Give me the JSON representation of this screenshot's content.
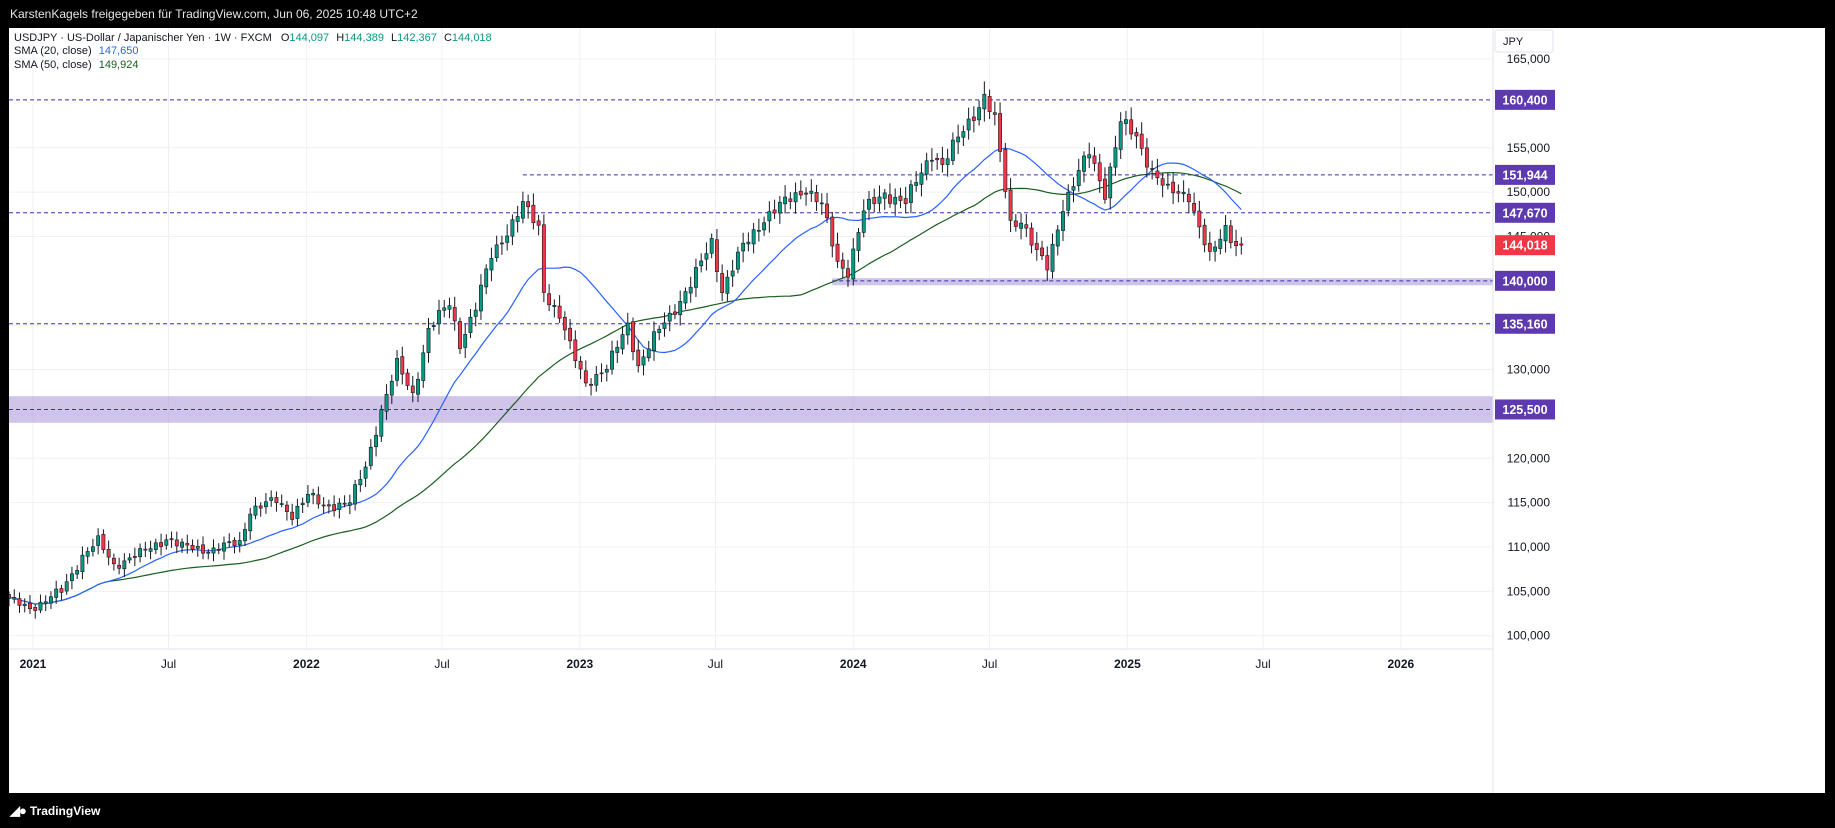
{
  "header": {
    "attribution": "KarstenKagels freigegeben für TradingView.com, Jun 06, 2025 10:48 UTC+2"
  },
  "legend": {
    "title": "USDJPY · US-Dollar / Japanischer Yen · 1W · FXCM",
    "ohlc": {
      "o_label": "O",
      "o": "144,097",
      "h_label": "H",
      "h": "144,389",
      "l_label": "L",
      "l": "142,367",
      "c_label": "C",
      "c": "144,018"
    },
    "sma20": {
      "label": "SMA (20, close)",
      "value": "147,650"
    },
    "sma50": {
      "label": "SMA (50, close)",
      "value": "149,924"
    }
  },
  "currency": "JPY",
  "footer": {
    "brand": "TradingView"
  },
  "colors": {
    "up": "#089981",
    "down": "#f23645",
    "sma20": "#2962ff",
    "sma50": "#1b5e20",
    "level_line": "#3b2fb0",
    "level_badge": "#5e3ab0",
    "zone": "#b39ddb",
    "price_badge": "#f23645"
  },
  "chart_data": {
    "type": "candlestick",
    "interval": "1W",
    "x_range": [
      "2020-11-30",
      "2026-05-04"
    ],
    "y_range": [
      98500,
      168500
    ],
    "x_ticks": [
      {
        "date": "2021-01-01",
        "label": "2021",
        "bold": true
      },
      {
        "date": "2021-07-01",
        "label": "Jul",
        "bold": false
      },
      {
        "date": "2022-01-01",
        "label": "2022",
        "bold": true
      },
      {
        "date": "2022-07-01",
        "label": "Jul",
        "bold": false
      },
      {
        "date": "2023-01-01",
        "label": "2023",
        "bold": true
      },
      {
        "date": "2023-07-01",
        "label": "Jul",
        "bold": false
      },
      {
        "date": "2024-01-01",
        "label": "2024",
        "bold": true
      },
      {
        "date": "2024-07-01",
        "label": "Jul",
        "bold": false
      },
      {
        "date": "2025-01-01",
        "label": "2025",
        "bold": true
      },
      {
        "date": "2025-07-01",
        "label": "Jul",
        "bold": false
      },
      {
        "date": "2026-01-01",
        "label": "2026",
        "bold": true
      }
    ],
    "y_ticks": [
      {
        "value": 100000,
        "label": "100,000"
      },
      {
        "value": 105000,
        "label": "105,000"
      },
      {
        "value": 110000,
        "label": "110,000"
      },
      {
        "value": 115000,
        "label": "115,000"
      },
      {
        "value": 120000,
        "label": "120,000"
      },
      {
        "value": 125000,
        "label": "125,000"
      },
      {
        "value": 130000,
        "label": "130,000"
      },
      {
        "value": 135000,
        "label": "135,000"
      },
      {
        "value": 145000,
        "label": "145,000"
      },
      {
        "value": 150000,
        "label": "150,000"
      },
      {
        "value": 155000,
        "label": "155,000"
      },
      {
        "value": 165000,
        "label": "165,000"
      }
    ],
    "key_levels": [
      {
        "value": 160400,
        "label": "160,400",
        "from": "2020-11-30"
      },
      {
        "value": 151944,
        "label": "151,944",
        "from": "2022-10-17"
      },
      {
        "value": 147670,
        "label": "147,670",
        "from": "2020-11-30"
      },
      {
        "value": 140000,
        "label": "140,000",
        "from": "2023-12-04"
      },
      {
        "value": 135160,
        "label": "135,160",
        "from": "2020-11-30"
      },
      {
        "value": 125500,
        "label": "125,500",
        "from": "2020-11-30"
      }
    ],
    "zones": [
      {
        "from_value": 124000,
        "to_value": 127000,
        "from": "2020-11-30"
      },
      {
        "from_value": 139500,
        "to_value": 140300,
        "from": "2023-12-04"
      }
    ],
    "last_price": {
      "value": 144018,
      "label": "144,018"
    },
    "anchors": [
      [
        "2020-11-30",
        104000
      ],
      [
        "2020-12-28",
        103200
      ],
      [
        "2021-01-11",
        103600
      ],
      [
        "2021-02-08",
        105000
      ],
      [
        "2021-03-08",
        109000
      ],
      [
        "2021-03-29",
        110600
      ],
      [
        "2021-04-19",
        108000
      ],
      [
        "2021-05-24",
        109200
      ],
      [
        "2021-06-28",
        111000
      ],
      [
        "2021-07-19",
        110000
      ],
      [
        "2021-08-30",
        109700
      ],
      [
        "2021-10-04",
        110500
      ],
      [
        "2021-10-18",
        114200
      ],
      [
        "2021-11-22",
        115200
      ],
      [
        "2021-12-13",
        113700
      ],
      [
        "2022-01-03",
        115800
      ],
      [
        "2022-01-24",
        114600
      ],
      [
        "2022-02-28",
        115000
      ],
      [
        "2022-03-21",
        119000
      ],
      [
        "2022-04-11",
        125500
      ],
      [
        "2022-05-02",
        130500
      ],
      [
        "2022-05-23",
        127200
      ],
      [
        "2022-06-13",
        134500
      ],
      [
        "2022-07-11",
        137400
      ],
      [
        "2022-07-25",
        133000
      ],
      [
        "2022-08-15",
        137000
      ],
      [
        "2022-09-05",
        142800
      ],
      [
        "2022-10-17",
        148500
      ],
      [
        "2022-11-07",
        146000
      ],
      [
        "2022-11-14",
        139000
      ],
      [
        "2022-12-05",
        136000
      ],
      [
        "2022-12-19",
        132500
      ],
      [
        "2023-01-09",
        128600
      ],
      [
        "2023-02-06",
        130000
      ],
      [
        "2023-03-06",
        135200
      ],
      [
        "2023-03-20",
        130400
      ],
      [
        "2023-04-17",
        134500
      ],
      [
        "2023-05-29",
        139500
      ],
      [
        "2023-06-26",
        144500
      ],
      [
        "2023-07-10",
        139000
      ],
      [
        "2023-08-07",
        143800
      ],
      [
        "2023-09-04",
        147100
      ],
      [
        "2023-10-30",
        150500
      ],
      [
        "2023-11-20",
        148500
      ],
      [
        "2023-12-11",
        142000
      ],
      [
        "2023-12-25",
        141200
      ],
      [
        "2024-01-15",
        147800
      ],
      [
        "2024-02-12",
        149900
      ],
      [
        "2024-03-11",
        148800
      ],
      [
        "2024-04-15",
        154500
      ],
      [
        "2024-04-29",
        153000
      ],
      [
        "2024-05-27",
        157000
      ],
      [
        "2024-06-24",
        160800
      ],
      [
        "2024-07-08",
        158000
      ],
      [
        "2024-07-29",
        146500
      ],
      [
        "2024-08-12",
        147000
      ],
      [
        "2024-09-02",
        143000
      ],
      [
        "2024-09-16",
        141500
      ],
      [
        "2024-10-07",
        148500
      ],
      [
        "2024-11-11",
        154500
      ],
      [
        "2024-12-02",
        150000
      ],
      [
        "2024-12-23",
        157800
      ],
      [
        "2025-01-13",
        156200
      ],
      [
        "2025-02-03",
        152500
      ],
      [
        "2025-02-24",
        150000
      ],
      [
        "2025-03-24",
        149800
      ],
      [
        "2025-04-07",
        146000
      ],
      [
        "2025-04-21",
        142500
      ],
      [
        "2025-05-12",
        146000
      ],
      [
        "2025-05-26",
        144200
      ],
      [
        "2025-06-02",
        144018
      ]
    ]
  }
}
